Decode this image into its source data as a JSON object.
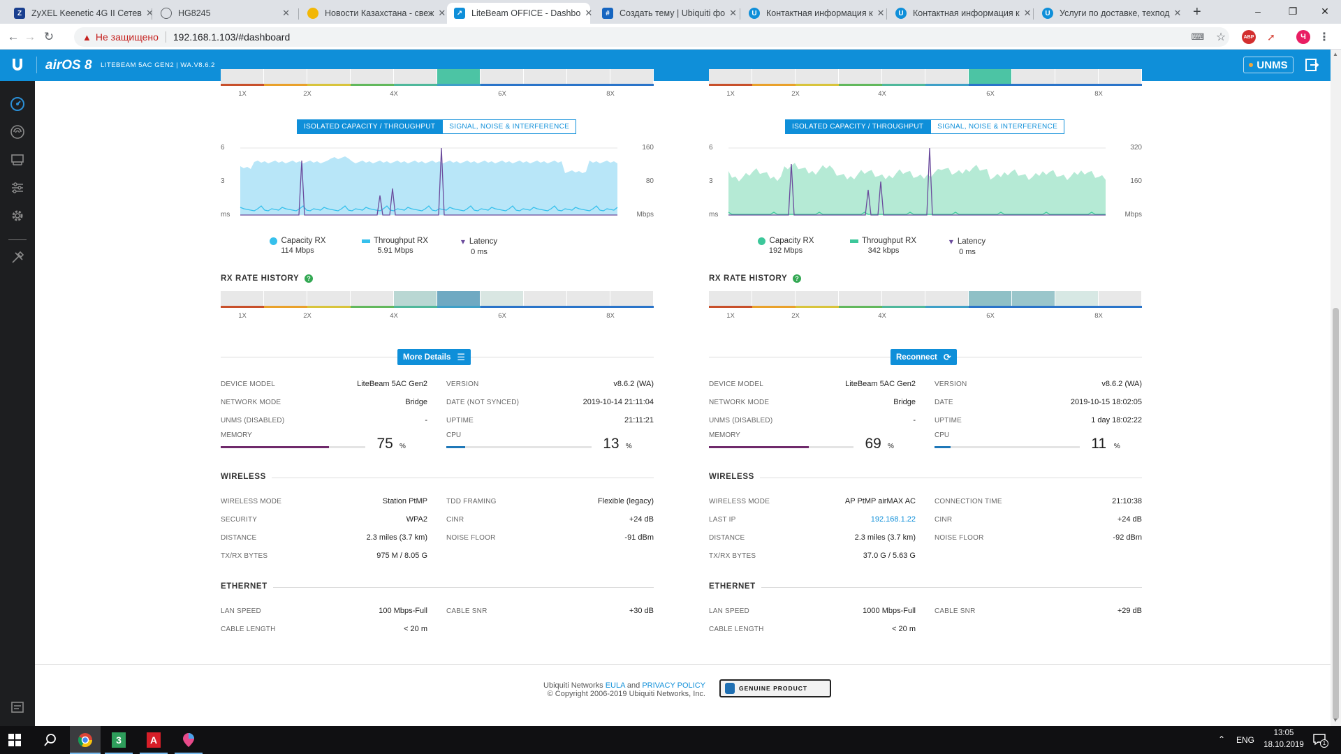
{
  "browser": {
    "tabs": [
      {
        "title": "ZyXEL Keenetic 4G II Сетев",
        "favicon": "Z",
        "color": "#1a3f8f"
      },
      {
        "title": "HG8245",
        "favicon": "globe",
        "color": "#5f6368"
      },
      {
        "title": "Новости Казахстана - свеж",
        "favicon": "sun",
        "color": "#f2b705"
      },
      {
        "title": "LiteBeam OFFICE - Dashbo",
        "favicon": "wifi",
        "color": "#0f8fd9"
      },
      {
        "title": "Создать тему | Ubiquiti фо",
        "favicon": "grid",
        "color": "#1565c0"
      },
      {
        "title": "Контактная информация к",
        "favicon": "U",
        "color": "#0f8fd9"
      },
      {
        "title": "Контактная информация к",
        "favicon": "U",
        "color": "#0f8fd9"
      },
      {
        "title": "Услуги по доставке, техпод",
        "favicon": "U",
        "color": "#0f8fd9"
      }
    ],
    "active_tab": 3,
    "not_secure": "Не защищено",
    "url": "192.168.1.103/#dashboard",
    "ext_abp": "ABP",
    "profile": "Ч"
  },
  "header": {
    "brand": "airOS 8",
    "device": "LITEBEAM 5AC GEN2 | WA.V8.6.2",
    "unms": "UNMS"
  },
  "panels": [
    {
      "top_rate_labels": [
        "1X",
        "2X",
        "4X",
        "6X",
        "8X"
      ],
      "top_rate_highlight": [
        5
      ],
      "toggle_on": "ISOLATED CAPACITY / THROUGHPUT",
      "toggle_off": "SIGNAL, NOISE & INTERFERENCE",
      "chart": {
        "left_ticks": [
          "6",
          "3",
          "ms"
        ],
        "right_ticks": [
          "160",
          "80",
          "Mbps"
        ],
        "fill_color": "#b8e6f8",
        "line_color": "#36c0ec"
      },
      "legend": [
        {
          "name": "Capacity RX",
          "value": "114 Mbps",
          "color": "#36c0ec",
          "shape": "circle"
        },
        {
          "name": "Throughput RX",
          "value": "5.91 Mbps",
          "color": "#36c0ec",
          "shape": "square"
        },
        {
          "name": "Latency",
          "value": "0 ms",
          "color": "#6a4a9c",
          "shape": "tri"
        }
      ],
      "rx_history_title": "RX RATE HISTORY",
      "rx_rate_labels": [
        "1X",
        "2X",
        "4X",
        "6X",
        "8X"
      ],
      "action_label": "More Details",
      "device": [
        {
          "k": "DEVICE MODEL",
          "v": "LiteBeam 5AC Gen2"
        },
        {
          "k": "NETWORK MODE",
          "v": "Bridge"
        },
        {
          "k": "UNMS (DISABLED)",
          "v": "-"
        }
      ],
      "device_right": [
        {
          "k": "VERSION",
          "v": "v8.6.2 (WA)"
        },
        {
          "k": "DATE (NOT SYNCED)",
          "v": "2019-10-14 21:11:04"
        },
        {
          "k": "UPTIME",
          "v": "21:11:21"
        }
      ],
      "memory": {
        "label": "MEMORY",
        "value": "75",
        "unit": "%",
        "fraction": 0.75
      },
      "cpu": {
        "label": "CPU",
        "value": "13",
        "unit": "%",
        "fraction": 0.13
      },
      "wireless_title": "WIRELESS",
      "wireless_left": [
        {
          "k": "WIRELESS MODE",
          "v": "Station PtMP"
        },
        {
          "k": "SECURITY",
          "v": "WPA2"
        },
        {
          "k": "DISTANCE",
          "v": "2.3 miles (3.7 km)"
        },
        {
          "k": "TX/RX BYTES",
          "v": "975 M / 8.05 G"
        }
      ],
      "wireless_right": [
        {
          "k": "TDD FRAMING",
          "v": "Flexible (legacy)"
        },
        {
          "k": "CINR",
          "v": "+24 dB"
        },
        {
          "k": "NOISE FLOOR",
          "v": "-91 dBm"
        }
      ],
      "ethernet_title": "ETHERNET",
      "ethernet_left": [
        {
          "k": "LAN SPEED",
          "v": "100 Mbps-Full"
        },
        {
          "k": "CABLE LENGTH",
          "v": "< 20 m"
        }
      ],
      "ethernet_right": [
        {
          "k": "CABLE SNR",
          "v": "+30 dB"
        }
      ]
    },
    {
      "top_rate_labels": [
        "1X",
        "2X",
        "4X",
        "6X",
        "8X"
      ],
      "top_rate_highlight": [
        6
      ],
      "toggle_on": "ISOLATED CAPACITY / THROUGHPUT",
      "toggle_off": "SIGNAL, NOISE & INTERFERENCE",
      "chart": {
        "left_ticks": [
          "6",
          "3",
          "ms"
        ],
        "right_ticks": [
          "320",
          "160",
          "Mbps"
        ],
        "fill_color": "#b5ead5",
        "line_color": "#3cc79a"
      },
      "legend": [
        {
          "name": "Capacity RX",
          "value": "192 Mbps",
          "color": "#3cc79a",
          "shape": "circle"
        },
        {
          "name": "Throughput RX",
          "value": "342 kbps",
          "color": "#3cc79a",
          "shape": "square"
        },
        {
          "name": "Latency",
          "value": "0 ms",
          "color": "#6a4a9c",
          "shape": "tri"
        }
      ],
      "rx_history_title": "RX RATE HISTORY",
      "rx_rate_labels": [
        "1X",
        "2X",
        "4X",
        "6X",
        "8X"
      ],
      "action_label": "Reconnect",
      "device": [
        {
          "k": "DEVICE MODEL",
          "v": "LiteBeam 5AC Gen2"
        },
        {
          "k": "NETWORK MODE",
          "v": "Bridge"
        },
        {
          "k": "UNMS (DISABLED)",
          "v": "-"
        }
      ],
      "device_right": [
        {
          "k": "VERSION",
          "v": "v8.6.2 (WA)"
        },
        {
          "k": "DATE",
          "v": "2019-10-15 18:02:05"
        },
        {
          "k": "UPTIME",
          "v": "1 day 18:02:22"
        }
      ],
      "memory": {
        "label": "MEMORY",
        "value": "69",
        "unit": "%",
        "fraction": 0.69
      },
      "cpu": {
        "label": "CPU",
        "value": "11",
        "unit": "%",
        "fraction": 0.11
      },
      "wireless_title": "WIRELESS",
      "wireless_left": [
        {
          "k": "WIRELESS MODE",
          "v": "AP PtMP airMAX AC"
        },
        {
          "k": "LAST IP",
          "v": "192.168.1.22",
          "link": true
        },
        {
          "k": "DISTANCE",
          "v": "2.3 miles (3.7 km)"
        },
        {
          "k": "TX/RX BYTES",
          "v": "37.0 G / 5.63 G"
        }
      ],
      "wireless_right": [
        {
          "k": "CONNECTION TIME",
          "v": "21:10:38"
        },
        {
          "k": "CINR",
          "v": "+24 dB"
        },
        {
          "k": "NOISE FLOOR",
          "v": "-92 dBm"
        }
      ],
      "ethernet_title": "ETHERNET",
      "ethernet_left": [
        {
          "k": "LAN SPEED",
          "v": "1000 Mbps-Full"
        },
        {
          "k": "CABLE LENGTH",
          "v": "< 20 m"
        }
      ],
      "ethernet_right": [
        {
          "k": "CABLE SNR",
          "v": "+29 dB"
        }
      ]
    }
  ],
  "footer": {
    "company": "Ubiquiti Networks",
    "eula": "EULA",
    "and": "and",
    "privacy": "PRIVACY POLICY",
    "copyright": "© Copyright 2006-2019 Ubiquiti Networks, Inc.",
    "badge": "GENUINE PRODUCT"
  },
  "taskbar": {
    "lang": "ENG",
    "time": "13:05",
    "date": "18.10.2019",
    "notif_count": "1"
  }
}
